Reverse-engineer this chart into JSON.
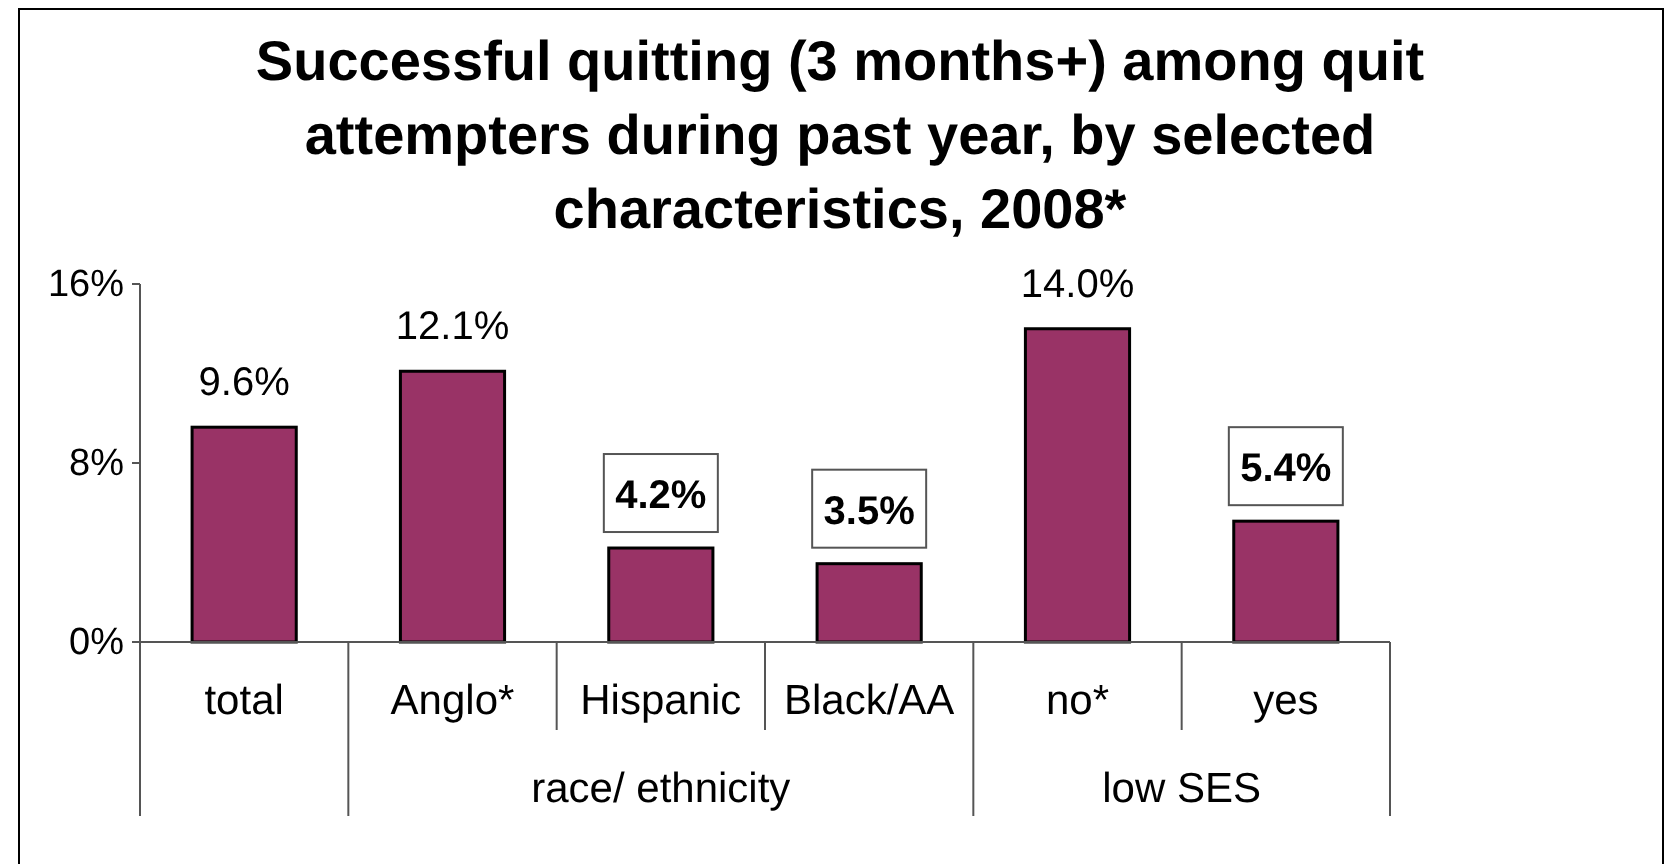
{
  "chart_data": {
    "type": "bar",
    "title": "Successful quitting (3 months+) among quit attempters during past year, by selected characteristics, 2008*",
    "categories": [
      "total",
      "Anglo*",
      "Hispanic",
      "Black/AA",
      "no*",
      "yes"
    ],
    "values": [
      9.6,
      12.1,
      4.2,
      3.5,
      14.0,
      5.4
    ],
    "color": "#993366",
    "ylim": [
      0,
      16
    ],
    "yticks": [
      {
        "value": 0,
        "label": "0%"
      },
      {
        "value": 8,
        "label": "8%"
      },
      {
        "value": 16,
        "label": "16%"
      }
    ],
    "value_labels": [
      "9.6%",
      "12.1%",
      "4.2%",
      "3.5%",
      "14.0%",
      "5.4%"
    ],
    "annotations": [
      "race/ ethnicity",
      "low SES"
    ]
  }
}
